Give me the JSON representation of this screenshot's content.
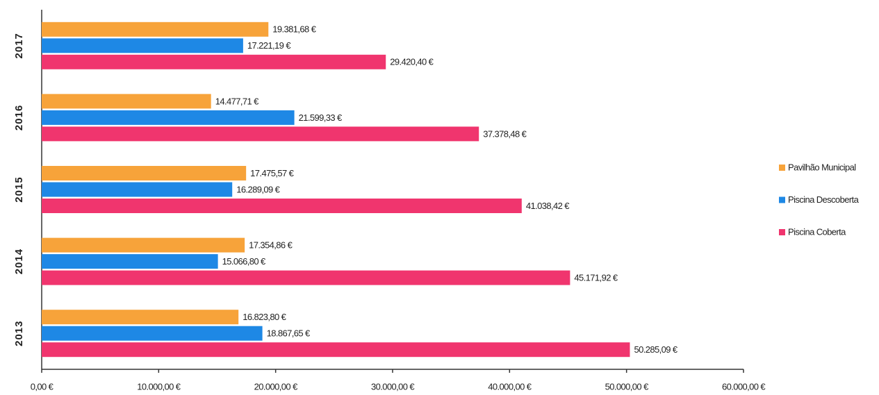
{
  "chart_data": {
    "type": "bar",
    "orientation": "horizontal",
    "categories": [
      "2017",
      "2016",
      "2015",
      "2014",
      "2013"
    ],
    "series": [
      {
        "name": "Pavilhão Municipal",
        "color": "#f7a33a",
        "values": [
          19381.68,
          14477.71,
          17475.57,
          17354.86,
          16823.8
        ],
        "value_labels": [
          "19.381,68 €",
          "14.477,71 €",
          "17.475,57 €",
          "17.354,86 €",
          "16.823,80 €"
        ]
      },
      {
        "name": "Piscina Descoberta",
        "color": "#1e88e5",
        "values": [
          17221.19,
          21599.33,
          16289.09,
          15066.8,
          18867.65
        ],
        "value_labels": [
          "17.221,19 €",
          "21.599,33 €",
          "16.289,09 €",
          "15.066,80 €",
          "18.867,65 €"
        ]
      },
      {
        "name": "Piscina Coberta",
        "color": "#f0356e",
        "values": [
          29420.4,
          37378.48,
          41038.42,
          45171.92,
          50285.09
        ],
        "value_labels": [
          "29.420,40 €",
          "37.378,48 €",
          "41.038,42 €",
          "45.171,92 €",
          "50.285,09 €"
        ]
      }
    ],
    "xlim": [
      0,
      60000
    ],
    "xticks": [
      {
        "value": 0,
        "label": "0,00 €"
      },
      {
        "value": 10000,
        "label": "10.000,00 €"
      },
      {
        "value": 20000,
        "label": "20.000,00 €"
      },
      {
        "value": 30000,
        "label": "30.000,00 €"
      },
      {
        "value": 40000,
        "label": "40.000,00 €"
      },
      {
        "value": 50000,
        "label": "50.000,00 €"
      },
      {
        "value": 60000,
        "label": "60.000,00 €"
      }
    ],
    "legend": "right"
  }
}
